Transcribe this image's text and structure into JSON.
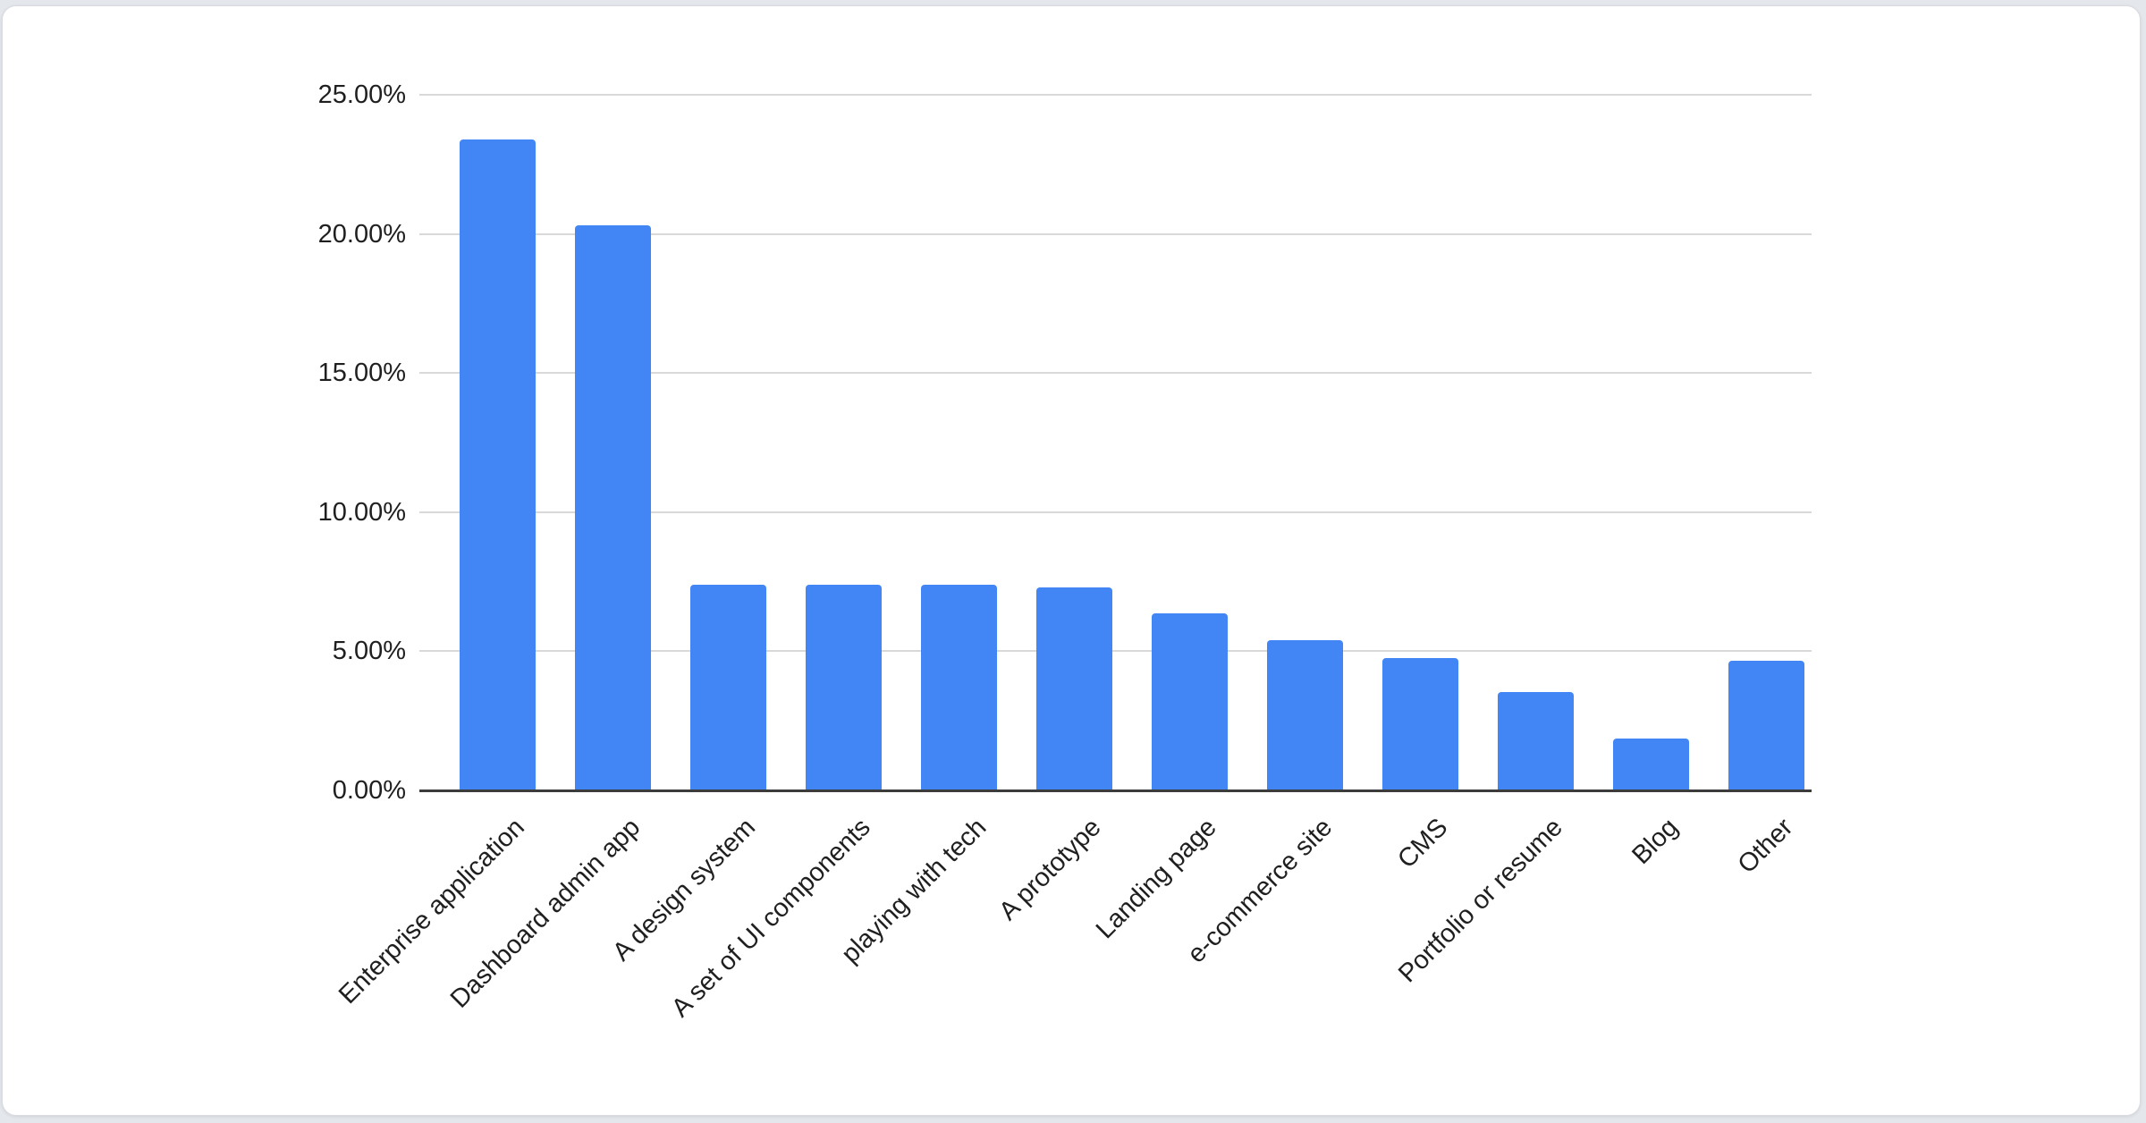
{
  "page": {
    "background": "#e4e7ec"
  },
  "card": {
    "background": "#ffffff",
    "border_color": "#d9dbe0"
  },
  "chart_data": {
    "type": "bar",
    "title": "",
    "xlabel": "",
    "ylabel": "",
    "categories": [
      "Enterprise application",
      "Dashboard admin app",
      "A design system",
      "A set of UI components",
      "playing with tech",
      "A prototype",
      "Landing page",
      "e-commerce site",
      "CMS",
      "Portfolio or resume",
      "Blog",
      "Other"
    ],
    "values": [
      23.4,
      20.3,
      7.4,
      7.4,
      7.4,
      7.3,
      6.35,
      5.4,
      4.75,
      3.55,
      1.85,
      4.65
    ],
    "value_unit": "%",
    "ylim": [
      0,
      25
    ],
    "y_ticks": [
      {
        "value": 0,
        "label": "0.00%"
      },
      {
        "value": 5,
        "label": "5.00%"
      },
      {
        "value": 10,
        "label": "10.00%"
      },
      {
        "value": 15,
        "label": "15.00%"
      },
      {
        "value": 20,
        "label": "20.00%"
      },
      {
        "value": 25,
        "label": "25.00%"
      }
    ],
    "grid": true,
    "legend_position": "none",
    "x_label_rotation_deg": -45,
    "bar_color": "#4285F4",
    "gridline_color": "#d9d9d9",
    "axis_line_color": "#3c3c3c",
    "label_color": "#1f1f1f"
  }
}
